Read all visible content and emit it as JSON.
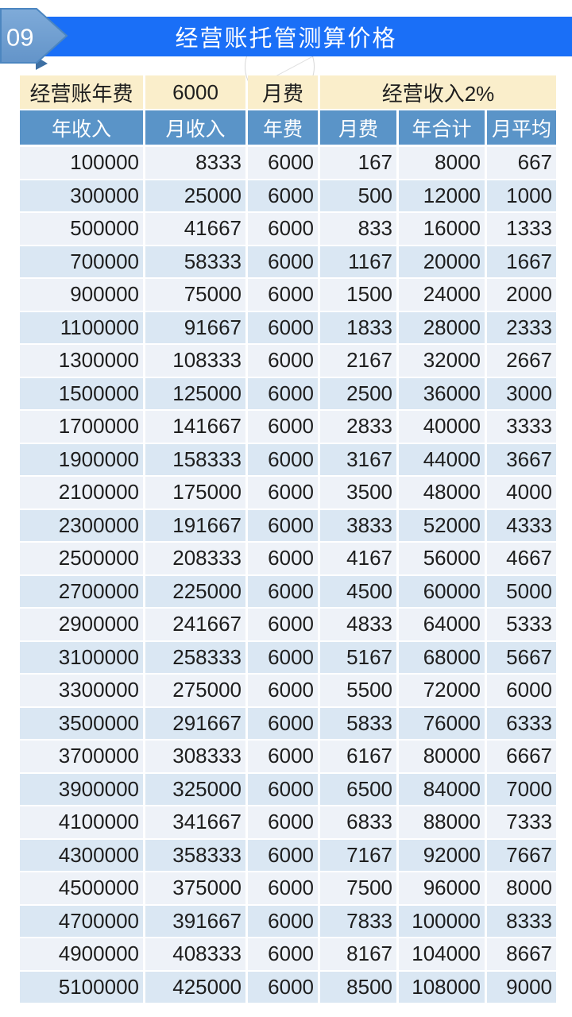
{
  "header": {
    "badge": "09",
    "title": "经营账托管测算价格"
  },
  "params": {
    "annual_fee_label": "经营账年费",
    "annual_fee_value": "6000",
    "monthly_fee_label": "月费",
    "monthly_fee_value": "经营收入2%"
  },
  "table": {
    "columns": [
      "年收入",
      "月收入",
      "年费",
      "月费",
      "年合计",
      "月平均"
    ],
    "rows": [
      [
        "100000",
        "8333",
        "6000",
        "167",
        "8000",
        "667"
      ],
      [
        "300000",
        "25000",
        "6000",
        "500",
        "12000",
        "1000"
      ],
      [
        "500000",
        "41667",
        "6000",
        "833",
        "16000",
        "1333"
      ],
      [
        "700000",
        "58333",
        "6000",
        "1167",
        "20000",
        "1667"
      ],
      [
        "900000",
        "75000",
        "6000",
        "1500",
        "24000",
        "2000"
      ],
      [
        "1100000",
        "91667",
        "6000",
        "1833",
        "28000",
        "2333"
      ],
      [
        "1300000",
        "108333",
        "6000",
        "2167",
        "32000",
        "2667"
      ],
      [
        "1500000",
        "125000",
        "6000",
        "2500",
        "36000",
        "3000"
      ],
      [
        "1700000",
        "141667",
        "6000",
        "2833",
        "40000",
        "3333"
      ],
      [
        "1900000",
        "158333",
        "6000",
        "3167",
        "44000",
        "3667"
      ],
      [
        "2100000",
        "175000",
        "6000",
        "3500",
        "48000",
        "4000"
      ],
      [
        "2300000",
        "191667",
        "6000",
        "3833",
        "52000",
        "4333"
      ],
      [
        "2500000",
        "208333",
        "6000",
        "4167",
        "56000",
        "4667"
      ],
      [
        "2700000",
        "225000",
        "6000",
        "4500",
        "60000",
        "5000"
      ],
      [
        "2900000",
        "241667",
        "6000",
        "4833",
        "64000",
        "5333"
      ],
      [
        "3100000",
        "258333",
        "6000",
        "5167",
        "68000",
        "5667"
      ],
      [
        "3300000",
        "275000",
        "6000",
        "5500",
        "72000",
        "6000"
      ],
      [
        "3500000",
        "291667",
        "6000",
        "5833",
        "76000",
        "6333"
      ],
      [
        "3700000",
        "308333",
        "6000",
        "6167",
        "80000",
        "6667"
      ],
      [
        "3900000",
        "325000",
        "6000",
        "6500",
        "84000",
        "7000"
      ],
      [
        "4100000",
        "341667",
        "6000",
        "6833",
        "88000",
        "7333"
      ],
      [
        "4300000",
        "358333",
        "6000",
        "7167",
        "92000",
        "7667"
      ],
      [
        "4500000",
        "375000",
        "6000",
        "7500",
        "96000",
        "8000"
      ],
      [
        "4700000",
        "391667",
        "6000",
        "7833",
        "100000",
        "8333"
      ],
      [
        "4900000",
        "408333",
        "6000",
        "8167",
        "104000",
        "8667"
      ],
      [
        "5100000",
        "425000",
        "6000",
        "8500",
        "108000",
        "9000"
      ]
    ]
  },
  "colors": {
    "banner_blue": "#1a6ff7",
    "badge_blue": "#6f9fd1",
    "badge_edge": "#4c86c0",
    "header_steel_blue": "#5a94c8",
    "param_cream": "#faeecb",
    "row_light": "#eef2f8",
    "row_shaded": "#dae7f3",
    "text_dark": "#1e1e1e"
  }
}
